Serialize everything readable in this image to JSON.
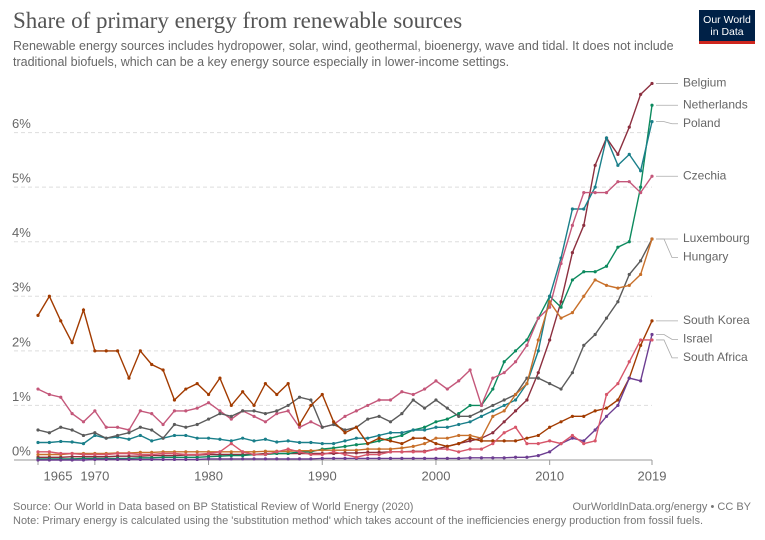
{
  "chart_data": {
    "type": "line",
    "title": "Share of primary energy from renewable sources",
    "subtitle": "Renewable energy sources includes hydropower, solar, wind, geothermal, bioenergy, wave and tidal. It does not include traditional biofuels, which can be a key energy source especially in lower-income settings.",
    "logo": "Our World in Data",
    "source": "Source: Our World in Data based on BP Statistical Review of World Energy (2020)",
    "url": "OurWorldInData.org/energy • CC BY",
    "note": "Note: Primary energy is calculated using the 'substitution method' which takes account of the inefficiencies energy production from fossil fuels.",
    "x": [
      1965,
      1966,
      1967,
      1968,
      1969,
      1970,
      1971,
      1972,
      1973,
      1974,
      1975,
      1976,
      1977,
      1978,
      1979,
      1980,
      1981,
      1982,
      1983,
      1984,
      1985,
      1986,
      1987,
      1988,
      1989,
      1990,
      1991,
      1992,
      1993,
      1994,
      1995,
      1996,
      1997,
      1998,
      1999,
      2000,
      2001,
      2002,
      2003,
      2004,
      2005,
      2006,
      2007,
      2008,
      2009,
      2010,
      2011,
      2012,
      2013,
      2014,
      2015,
      2016,
      2017,
      2018,
      2019
    ],
    "xlim": [
      1965,
      2019
    ],
    "xticks": [
      1965,
      1970,
      1980,
      1990,
      2000,
      2010,
      2019
    ],
    "ylim": [
      0,
      7
    ],
    "yticks": [
      {
        "value": 0,
        "label": "0%"
      },
      {
        "value": 1,
        "label": "1%"
      },
      {
        "value": 2,
        "label": "2%"
      },
      {
        "value": 3,
        "label": "3%"
      },
      {
        "value": 4,
        "label": "4%"
      },
      {
        "value": 5,
        "label": "5%"
      },
      {
        "value": 6,
        "label": "6%"
      }
    ],
    "grid": true,
    "series": [
      {
        "name": "Belgium",
        "color": "#8c2f3f",
        "values": [
          0.05,
          0.05,
          0.05,
          0.06,
          0.06,
          0.06,
          0.06,
          0.07,
          0.07,
          0.07,
          0.08,
          0.08,
          0.08,
          0.09,
          0.09,
          0.1,
          0.1,
          0.1,
          0.1,
          0.1,
          0.12,
          0.12,
          0.12,
          0.12,
          0.12,
          0.12,
          0.12,
          0.13,
          0.13,
          0.14,
          0.14,
          0.15,
          0.15,
          0.16,
          0.16,
          0.2,
          0.25,
          0.3,
          0.35,
          0.4,
          0.5,
          0.7,
          0.9,
          1.1,
          1.6,
          2.2,
          2.9,
          3.8,
          4.3,
          5.4,
          5.9,
          5.6,
          6.1,
          6.7,
          6.9
        ]
      },
      {
        "name": "Netherlands",
        "color": "#0c8a5e",
        "values": [
          0.02,
          0.02,
          0.02,
          0.02,
          0.03,
          0.03,
          0.03,
          0.03,
          0.03,
          0.04,
          0.04,
          0.05,
          0.05,
          0.05,
          0.05,
          0.06,
          0.07,
          0.08,
          0.08,
          0.1,
          0.1,
          0.12,
          0.12,
          0.15,
          0.15,
          0.2,
          0.22,
          0.25,
          0.28,
          0.3,
          0.35,
          0.4,
          0.45,
          0.55,
          0.6,
          0.7,
          0.75,
          0.85,
          1.0,
          1.0,
          1.3,
          1.8,
          2.0,
          2.2,
          2.6,
          3.0,
          2.8,
          3.3,
          3.45,
          3.45,
          3.55,
          3.9,
          4.0,
          5.0,
          6.5
        ]
      },
      {
        "name": "Poland",
        "color": "#1a7f8a",
        "values": [
          0.32,
          0.32,
          0.34,
          0.33,
          0.3,
          0.45,
          0.4,
          0.42,
          0.38,
          0.45,
          0.35,
          0.4,
          0.45,
          0.45,
          0.4,
          0.4,
          0.38,
          0.35,
          0.4,
          0.35,
          0.38,
          0.33,
          0.35,
          0.32,
          0.32,
          0.3,
          0.3,
          0.35,
          0.4,
          0.4,
          0.45,
          0.5,
          0.5,
          0.55,
          0.55,
          0.6,
          0.6,
          0.65,
          0.7,
          0.8,
          0.9,
          1.0,
          1.1,
          1.4,
          2.0,
          3.0,
          3.7,
          4.6,
          4.6,
          5.0,
          5.9,
          5.4,
          5.6,
          5.3,
          6.2
        ]
      },
      {
        "name": "Czechia",
        "color": "#c4577a",
        "values": [
          1.3,
          1.2,
          1.15,
          0.85,
          0.7,
          0.9,
          0.6,
          0.6,
          0.55,
          0.9,
          0.85,
          0.65,
          0.9,
          0.9,
          0.95,
          1.05,
          0.9,
          0.75,
          0.9,
          0.8,
          0.7,
          0.85,
          0.9,
          0.6,
          0.7,
          0.6,
          0.65,
          0.8,
          0.9,
          1.0,
          1.1,
          1.1,
          1.25,
          1.2,
          1.3,
          1.45,
          1.3,
          1.45,
          1.65,
          1.0,
          1.5,
          1.6,
          1.8,
          2.1,
          2.6,
          2.8,
          3.6,
          4.3,
          4.9,
          4.9,
          4.9,
          5.1,
          5.1,
          4.9,
          5.2
        ]
      },
      {
        "name": "Luxembourg",
        "color": "#5b5b5b",
        "values": [
          0.55,
          0.5,
          0.6,
          0.55,
          0.45,
          0.5,
          0.4,
          0.45,
          0.5,
          0.6,
          0.55,
          0.4,
          0.65,
          0.6,
          0.65,
          0.75,
          0.85,
          0.8,
          0.9,
          0.9,
          0.85,
          0.9,
          1.0,
          1.15,
          1.1,
          0.6,
          0.65,
          0.55,
          0.6,
          0.75,
          0.8,
          0.7,
          0.85,
          1.1,
          0.95,
          1.1,
          0.95,
          0.8,
          0.8,
          0.9,
          1.0,
          1.1,
          1.2,
          1.5,
          1.5,
          1.4,
          1.3,
          1.6,
          2.1,
          2.3,
          2.6,
          2.9,
          3.4,
          3.65,
          4.05
        ]
      },
      {
        "name": "Hungary",
        "color": "#c8702a",
        "values": [
          0.1,
          0.1,
          0.1,
          0.12,
          0.12,
          0.12,
          0.12,
          0.13,
          0.13,
          0.14,
          0.14,
          0.15,
          0.15,
          0.15,
          0.15,
          0.15,
          0.15,
          0.15,
          0.15,
          0.15,
          0.16,
          0.16,
          0.16,
          0.17,
          0.17,
          0.18,
          0.18,
          0.18,
          0.18,
          0.2,
          0.2,
          0.2,
          0.22,
          0.25,
          0.3,
          0.4,
          0.4,
          0.45,
          0.45,
          0.4,
          0.8,
          0.9,
          1.2,
          1.4,
          2.2,
          2.9,
          2.6,
          2.7,
          3.0,
          3.3,
          3.2,
          3.15,
          3.2,
          3.4,
          4.05
        ]
      },
      {
        "name": "South Korea",
        "color": "#a23b00",
        "values": [
          2.65,
          3.0,
          2.55,
          2.15,
          2.75,
          2.0,
          2.0,
          2.0,
          1.5,
          2.0,
          1.75,
          1.65,
          1.1,
          1.3,
          1.4,
          1.2,
          1.5,
          1.0,
          1.25,
          1.0,
          1.4,
          1.2,
          1.4,
          0.65,
          1.0,
          1.2,
          0.7,
          0.5,
          0.6,
          0.3,
          0.4,
          0.35,
          0.3,
          0.4,
          0.4,
          0.3,
          0.25,
          0.3,
          0.4,
          0.35,
          0.35,
          0.35,
          0.35,
          0.4,
          0.45,
          0.6,
          0.7,
          0.8,
          0.8,
          0.9,
          0.95,
          1.1,
          1.5,
          2.1,
          2.55
        ]
      },
      {
        "name": "Israel",
        "color": "#6c3d91",
        "values": [
          0,
          0,
          0,
          0,
          0,
          0.01,
          0.01,
          0.01,
          0.01,
          0.01,
          0.01,
          0.01,
          0.01,
          0.01,
          0.01,
          0.02,
          0.02,
          0.02,
          0.02,
          0.02,
          0.02,
          0.02,
          0.02,
          0.02,
          0.02,
          0.03,
          0.03,
          0.03,
          0.03,
          0.03,
          0.03,
          0.03,
          0.03,
          0.03,
          0.03,
          0.03,
          0.03,
          0.03,
          0.04,
          0.04,
          0.04,
          0.04,
          0.05,
          0.05,
          0.08,
          0.15,
          0.3,
          0.4,
          0.35,
          0.55,
          0.8,
          1.0,
          1.5,
          1.45,
          2.3
        ]
      },
      {
        "name": "South Africa",
        "color": "#d7566a",
        "values": [
          0.15,
          0.15,
          0.12,
          0.12,
          0.1,
          0.1,
          0.1,
          0.12,
          0.12,
          0.1,
          0.1,
          0.12,
          0.12,
          0.1,
          0.1,
          0.12,
          0.15,
          0.3,
          0.15,
          0.1,
          0.1,
          0.15,
          0.2,
          0.15,
          0.1,
          0.1,
          0.15,
          0.1,
          0.05,
          0.1,
          0.1,
          0.15,
          0.15,
          0.15,
          0.15,
          0.2,
          0.2,
          0.15,
          0.2,
          0.2,
          0.3,
          0.5,
          0.6,
          0.3,
          0.3,
          0.35,
          0.3,
          0.45,
          0.3,
          0.35,
          1.2,
          1.4,
          1.8,
          2.2,
          2.2
        ]
      }
    ]
  }
}
